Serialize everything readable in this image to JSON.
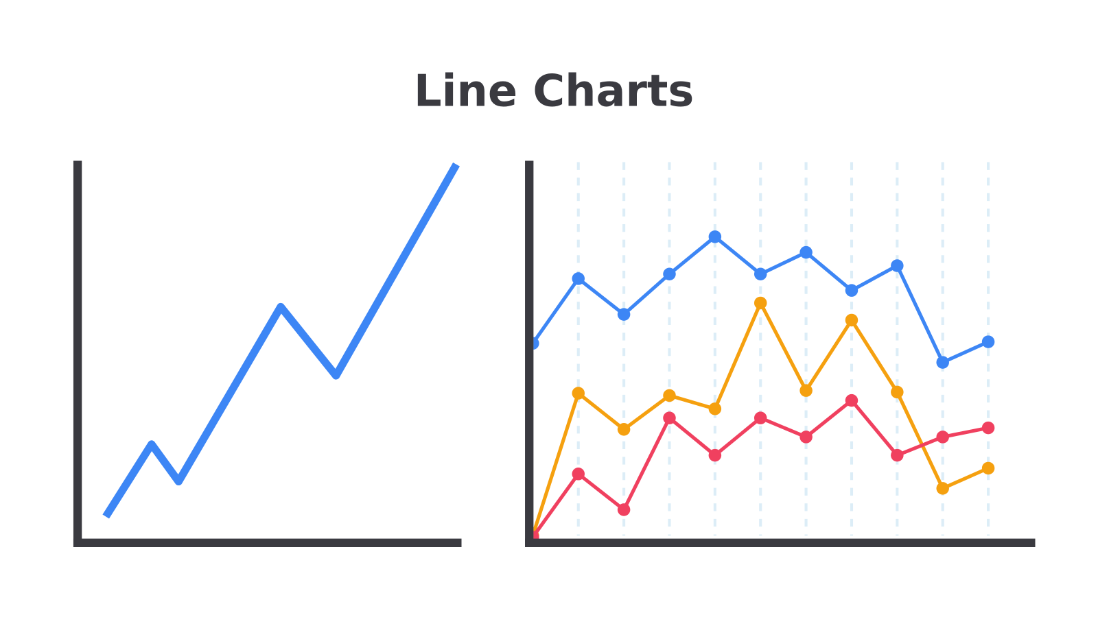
{
  "title": "Line Charts",
  "chart_data": [
    {
      "type": "line",
      "markers": false,
      "grid": false,
      "xlim": [
        0,
        100
      ],
      "ylim": [
        0,
        100
      ],
      "x": [
        7.4,
        19.4,
        26.5,
        53.3,
        67.8,
        99.4
      ],
      "values": [
        6.9,
        25.9,
        16.1,
        62.0,
        43.9,
        99.4
      ],
      "color": "#3d86f5"
    },
    {
      "type": "line",
      "markers": true,
      "grid": true,
      "xlim": [
        0,
        11
      ],
      "ylim": [
        0,
        100
      ],
      "xticks": [
        1,
        2,
        3,
        4,
        5,
        6,
        7,
        8,
        9,
        10
      ],
      "x": [
        0,
        1,
        2,
        3,
        4,
        5,
        6,
        7,
        8,
        9,
        10
      ],
      "series": [
        {
          "color": "#3d86f5",
          "values": [
            52.4,
            69.4,
            60.0,
            70.6,
            80.4,
            70.6,
            76.3,
            66.3,
            72.8,
            47.4,
            52.8
          ]
        },
        {
          "color": "#f5a00f",
          "values": [
            1.9,
            39.3,
            29.8,
            38.7,
            35.2,
            63.0,
            40.0,
            58.5,
            39.6,
            14.3,
            19.6
          ]
        },
        {
          "color": "#f0405f",
          "values": [
            1.5,
            18.1,
            8.7,
            32.8,
            23.0,
            32.8,
            27.8,
            37.4,
            23.0,
            27.8,
            30.2
          ]
        }
      ]
    }
  ]
}
